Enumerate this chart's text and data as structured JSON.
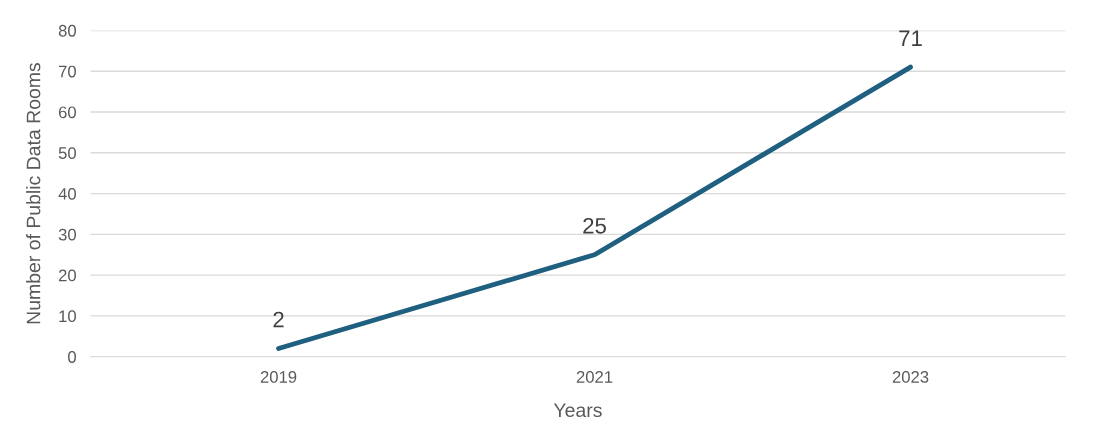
{
  "chart_data": {
    "type": "line",
    "xlabel": "Years",
    "ylabel": "Number of Public Data Rooms",
    "categories": [
      "2019",
      "2021",
      "2023"
    ],
    "series": [
      {
        "color": "#1f5f7f",
        "values": [
          2,
          25,
          71
        ]
      }
    ],
    "ylim": [
      0,
      80
    ],
    "yticks": [
      0,
      10,
      20,
      30,
      40,
      50,
      60,
      70,
      80
    ],
    "grid": "y",
    "data_labels": true,
    "marker": "none",
    "line_style": "solid",
    "legend": false
  }
}
